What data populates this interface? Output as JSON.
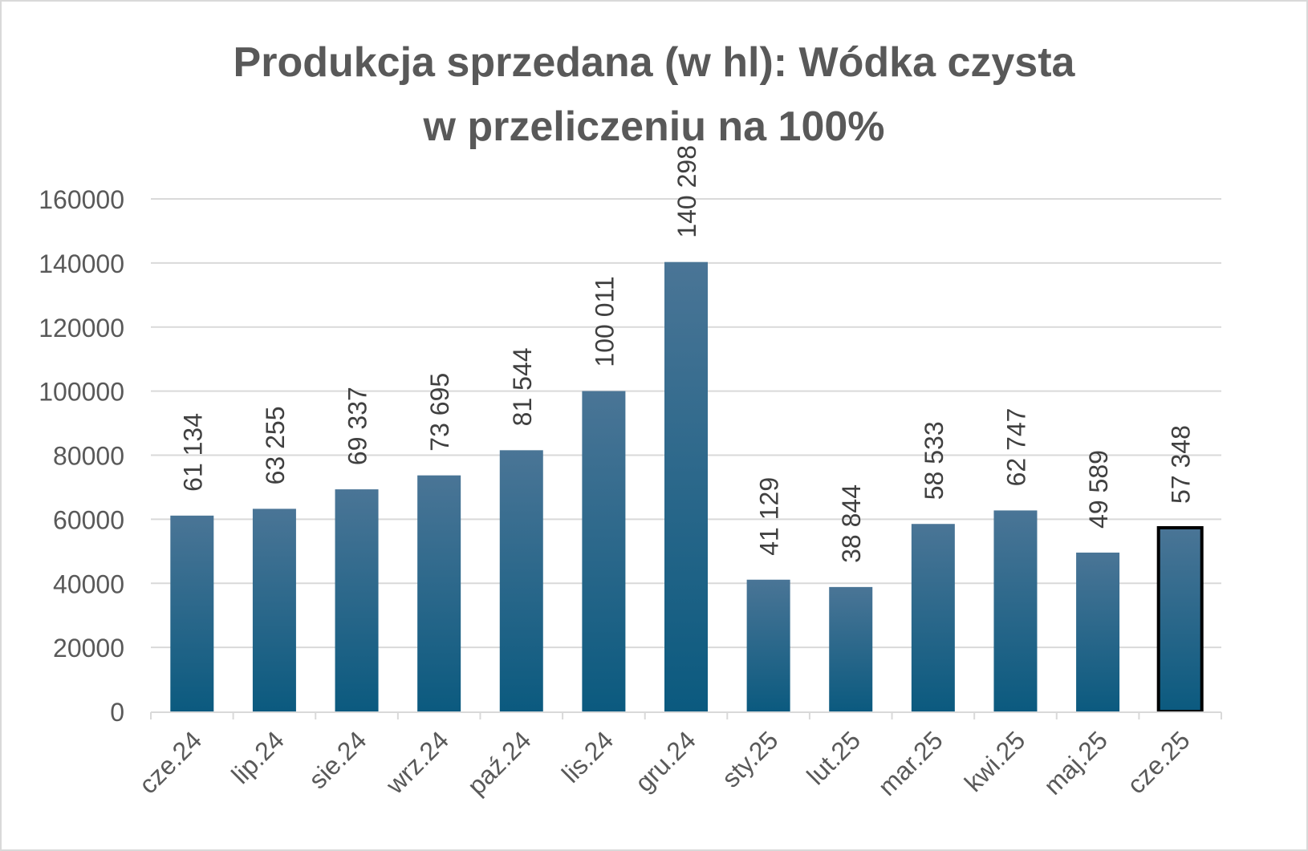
{
  "chart_data": {
    "type": "bar",
    "title_lines": [
      "Produkcja sprzedana (w hl): Wódka czysta",
      "w przeliczeniu na 100%"
    ],
    "categories": [
      "cze.24",
      "lip.24",
      "sie.24",
      "wrz.24",
      "paź.24",
      "lis.24",
      "gru.24",
      "sty.25",
      "lut.25",
      "mar.25",
      "kwi.25",
      "maj.25",
      "cze.25"
    ],
    "values": [
      61134,
      63255,
      69337,
      73695,
      81544,
      100011,
      140298,
      41129,
      38844,
      58533,
      62747,
      49589,
      57348
    ],
    "data_labels": [
      "61 134",
      "63 255",
      "69 337",
      "73 695",
      "81 544",
      "100 011",
      "140 298",
      "41 129",
      "38 844",
      "58 533",
      "62 747",
      "49 589",
      "57 348"
    ],
    "yticks": [
      0,
      20000,
      40000,
      60000,
      80000,
      100000,
      120000,
      140000,
      160000
    ],
    "ylim": [
      0,
      160000
    ],
    "highlighted_category": "cze.25",
    "grid": true,
    "legend": "none",
    "colors": {
      "bar_top": "#4a7596",
      "bar_bottom": "#0b5a7f",
      "grid": "#d9d9d9",
      "text": "#595959",
      "highlight_border": "#000000"
    }
  }
}
